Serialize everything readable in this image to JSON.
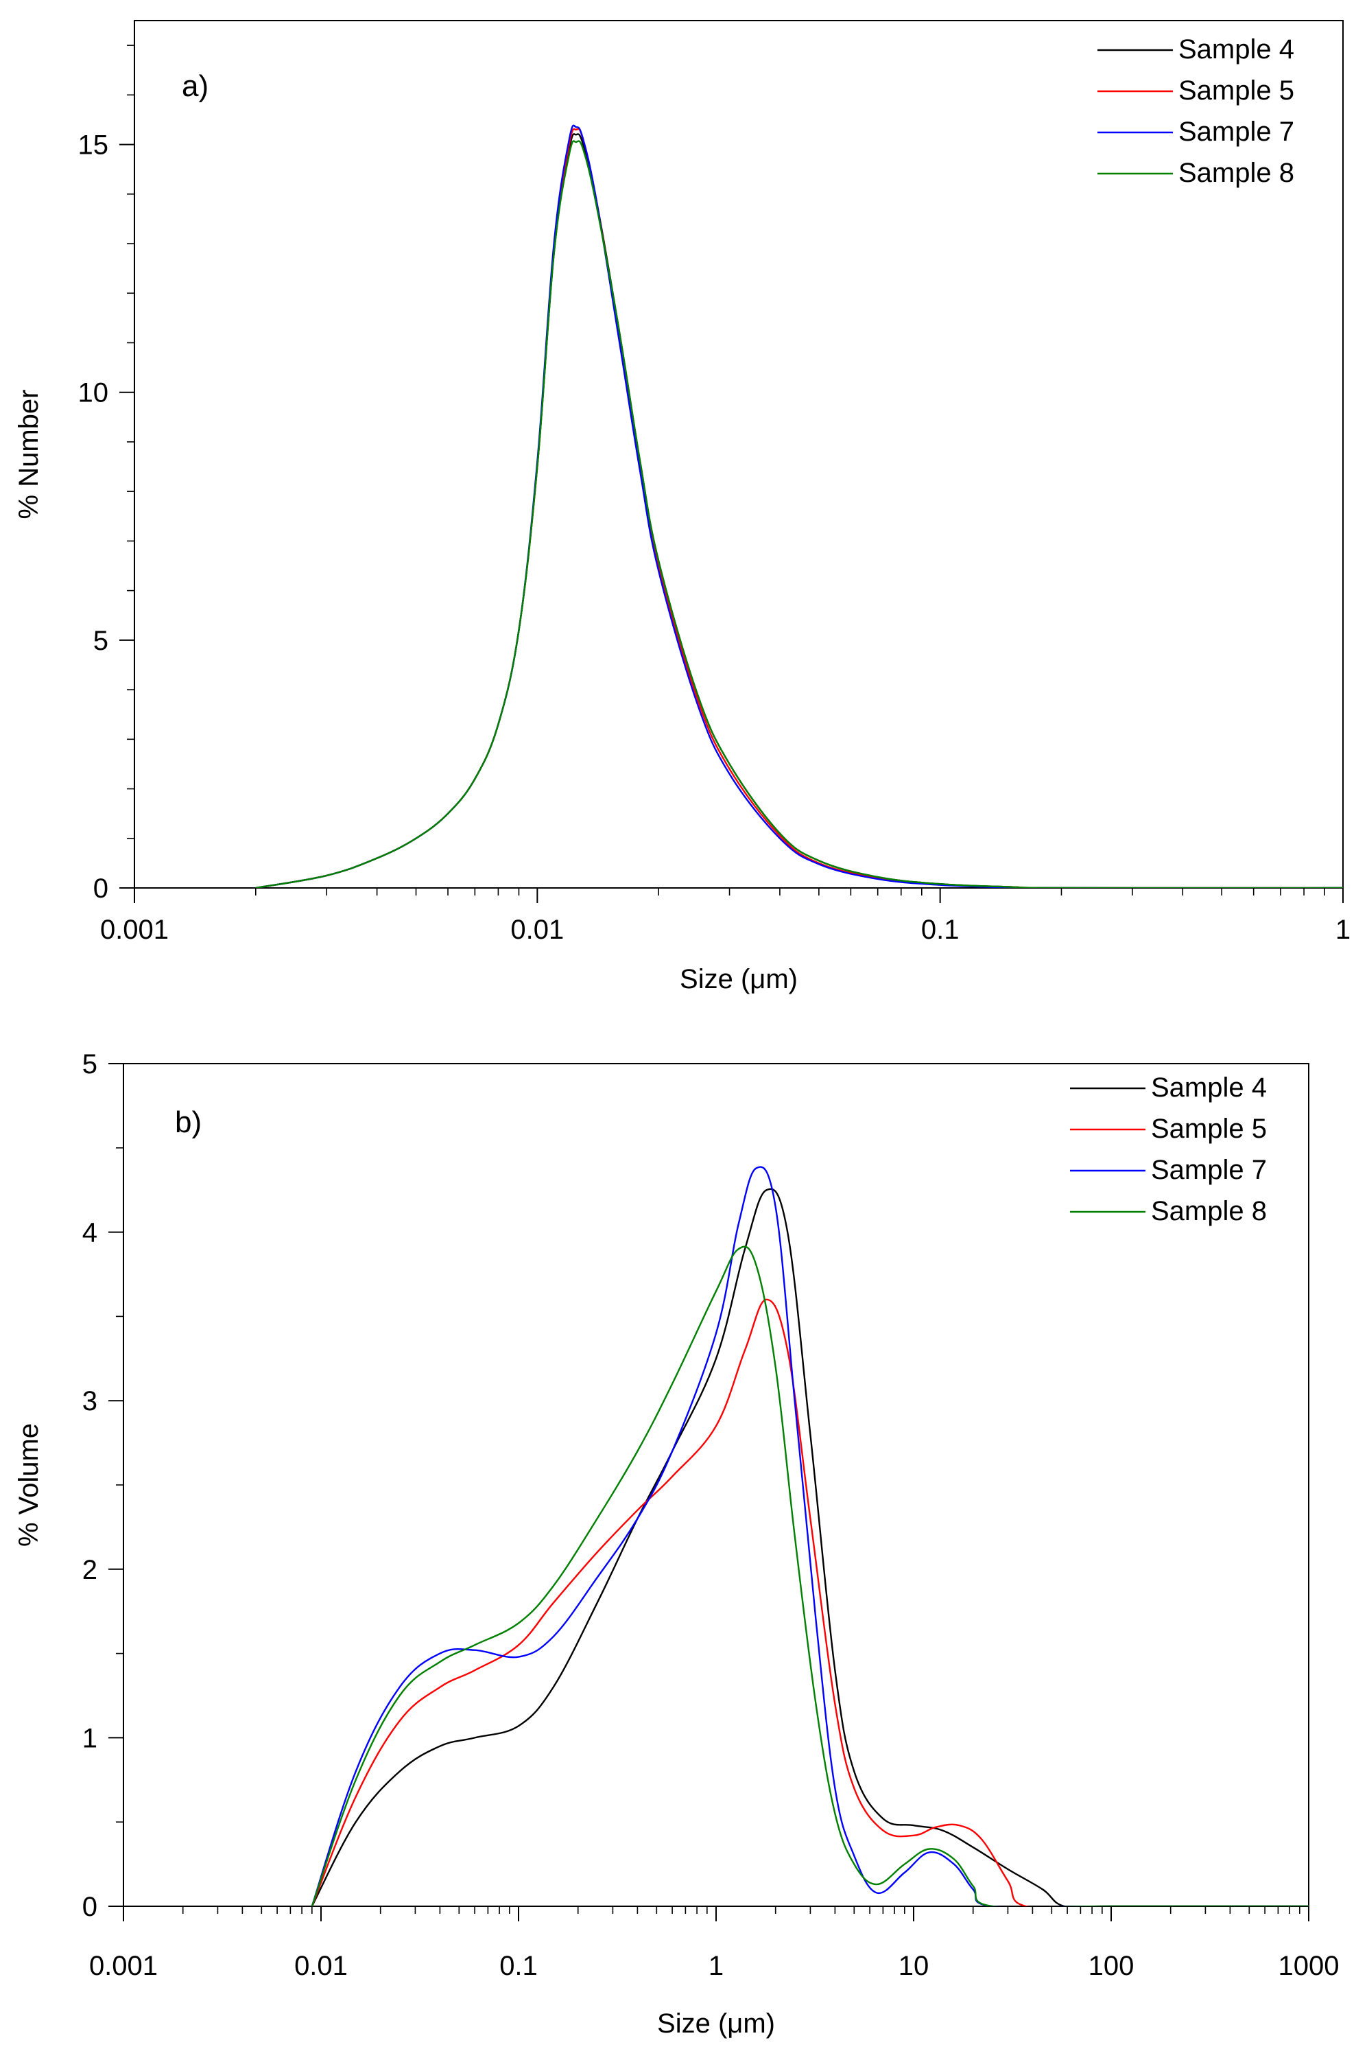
{
  "chart_data": [
    {
      "type": "line",
      "panel": "a)",
      "xscale": "log",
      "xlim": [
        0.001,
        1
      ],
      "ylim": [
        0,
        17.5
      ],
      "xticks": [
        "0.001",
        "0.01",
        "0.1",
        "1"
      ],
      "yticks": [
        "0",
        "5",
        "10",
        "15"
      ],
      "xlabel": "Size (μm)",
      "ylabel": "% Number",
      "legend_position": "top-right",
      "series": [
        {
          "name": "Sample 4",
          "color": "#000000",
          "x": [
            0.002,
            0.003,
            0.004,
            0.005,
            0.006,
            0.007,
            0.008,
            0.009,
            0.01,
            0.011,
            0.012,
            0.0125,
            0.013,
            0.014,
            0.016,
            0.018,
            0.02,
            0.025,
            0.03,
            0.04,
            0.05,
            0.07,
            0.1,
            0.15,
            0.2,
            1
          ],
          "y": [
            0,
            0.25,
            0.6,
            1.0,
            1.5,
            2.2,
            3.3,
            5.2,
            8.5,
            12.8,
            14.9,
            15.2,
            15.0,
            13.9,
            11.2,
            8.6,
            6.6,
            3.9,
            2.5,
            1.1,
            0.55,
            0.22,
            0.08,
            0.02,
            0,
            0
          ]
        },
        {
          "name": "Sample 5",
          "color": "#ff0000",
          "x": [
            0.002,
            0.003,
            0.004,
            0.005,
            0.006,
            0.007,
            0.008,
            0.009,
            0.01,
            0.011,
            0.012,
            0.0125,
            0.013,
            0.014,
            0.016,
            0.018,
            0.02,
            0.025,
            0.03,
            0.04,
            0.05,
            0.07,
            0.1,
            0.15,
            0.2,
            1
          ],
          "y": [
            0,
            0.25,
            0.6,
            1.0,
            1.5,
            2.2,
            3.3,
            5.2,
            8.5,
            12.9,
            15.0,
            15.3,
            15.1,
            13.9,
            11.1,
            8.5,
            6.5,
            3.8,
            2.4,
            1.05,
            0.5,
            0.2,
            0.07,
            0.02,
            0,
            0
          ]
        },
        {
          "name": "Sample 7",
          "color": "#0000ff",
          "x": [
            0.002,
            0.003,
            0.004,
            0.005,
            0.006,
            0.007,
            0.008,
            0.009,
            0.01,
            0.011,
            0.012,
            0.0125,
            0.013,
            0.014,
            0.016,
            0.018,
            0.02,
            0.025,
            0.03,
            0.04,
            0.05,
            0.07,
            0.1,
            0.15,
            0.2,
            1
          ],
          "y": [
            0,
            0.25,
            0.6,
            1.0,
            1.5,
            2.2,
            3.3,
            5.2,
            8.6,
            13.0,
            15.1,
            15.35,
            15.1,
            13.9,
            11.0,
            8.4,
            6.4,
            3.7,
            2.3,
            1.0,
            0.48,
            0.18,
            0.06,
            0.01,
            0,
            0
          ]
        },
        {
          "name": "Sample 8",
          "color": "#008000",
          "x": [
            0.002,
            0.003,
            0.004,
            0.005,
            0.006,
            0.007,
            0.008,
            0.009,
            0.01,
            0.011,
            0.012,
            0.0125,
            0.013,
            0.014,
            0.016,
            0.018,
            0.02,
            0.025,
            0.03,
            0.04,
            0.05,
            0.07,
            0.1,
            0.15,
            0.2,
            1
          ],
          "y": [
            0,
            0.25,
            0.6,
            1.0,
            1.5,
            2.2,
            3.3,
            5.2,
            8.5,
            12.8,
            14.8,
            15.05,
            14.9,
            13.8,
            11.2,
            8.6,
            6.6,
            3.9,
            2.5,
            1.1,
            0.55,
            0.22,
            0.08,
            0.02,
            0,
            0
          ]
        }
      ]
    },
    {
      "type": "line",
      "panel": "b)",
      "xscale": "log",
      "xlim": [
        0.001,
        1000
      ],
      "ylim": [
        0,
        5
      ],
      "xticks": [
        "0.001",
        "0.01",
        "0.1",
        "1",
        "10",
        "100",
        "1000"
      ],
      "yticks": [
        "0",
        "1",
        "2",
        "3",
        "4",
        "5"
      ],
      "xlabel": "Size (μm)",
      "ylabel": "% Volume",
      "legend_position": "top-right",
      "series": [
        {
          "name": "Sample 4",
          "color": "#000000",
          "x": [
            0.009,
            0.015,
            0.025,
            0.04,
            0.06,
            0.1,
            0.15,
            0.25,
            0.4,
            0.6,
            1,
            1.4,
            1.8,
            2.3,
            3,
            4,
            5,
            7,
            10,
            14,
            20,
            30,
            45,
            58,
            100,
            1000
          ],
          "y": [
            0,
            0.5,
            0.8,
            0.95,
            1.0,
            1.07,
            1.3,
            1.8,
            2.3,
            2.7,
            3.25,
            3.9,
            4.25,
            4.0,
            2.8,
            1.4,
            0.8,
            0.52,
            0.48,
            0.45,
            0.35,
            0.22,
            0.1,
            0,
            0,
            0
          ]
        },
        {
          "name": "Sample 5",
          "color": "#ff0000",
          "x": [
            0.009,
            0.015,
            0.025,
            0.04,
            0.06,
            0.1,
            0.15,
            0.25,
            0.4,
            0.6,
            1,
            1.4,
            1.8,
            2.3,
            3,
            4,
            5,
            7,
            10,
            13,
            17,
            22,
            30,
            37,
            100,
            1000
          ],
          "y": [
            0,
            0.65,
            1.1,
            1.3,
            1.4,
            1.55,
            1.8,
            2.1,
            2.35,
            2.55,
            2.85,
            3.3,
            3.6,
            3.3,
            2.3,
            1.2,
            0.7,
            0.45,
            0.42,
            0.47,
            0.48,
            0.4,
            0.15,
            0,
            0,
            0
          ]
        },
        {
          "name": "Sample 7",
          "color": "#0000ff",
          "x": [
            0.009,
            0.015,
            0.025,
            0.04,
            0.06,
            0.1,
            0.15,
            0.25,
            0.4,
            0.6,
            1,
            1.3,
            1.6,
            2.0,
            2.5,
            3.2,
            4,
            5,
            6.5,
            9,
            12,
            16,
            20,
            25,
            100,
            1000
          ],
          "y": [
            0,
            0.8,
            1.3,
            1.5,
            1.52,
            1.48,
            1.6,
            1.95,
            2.3,
            2.7,
            3.4,
            4.05,
            4.38,
            4.15,
            3.0,
            1.7,
            0.7,
            0.3,
            0.08,
            0.2,
            0.32,
            0.25,
            0.1,
            0,
            0,
            0
          ]
        },
        {
          "name": "Sample 8",
          "color": "#008000",
          "x": [
            0.009,
            0.015,
            0.025,
            0.04,
            0.06,
            0.1,
            0.15,
            0.25,
            0.4,
            0.6,
            1,
            1.3,
            1.6,
            2.0,
            2.5,
            3.2,
            4,
            5,
            6.5,
            9,
            12,
            16,
            20,
            25,
            100,
            1000
          ],
          "y": [
            0,
            0.75,
            1.25,
            1.45,
            1.55,
            1.68,
            1.9,
            2.3,
            2.7,
            3.1,
            3.65,
            3.9,
            3.8,
            3.2,
            2.2,
            1.2,
            0.55,
            0.25,
            0.13,
            0.25,
            0.34,
            0.28,
            0.12,
            0,
            0,
            0
          ]
        }
      ]
    }
  ]
}
